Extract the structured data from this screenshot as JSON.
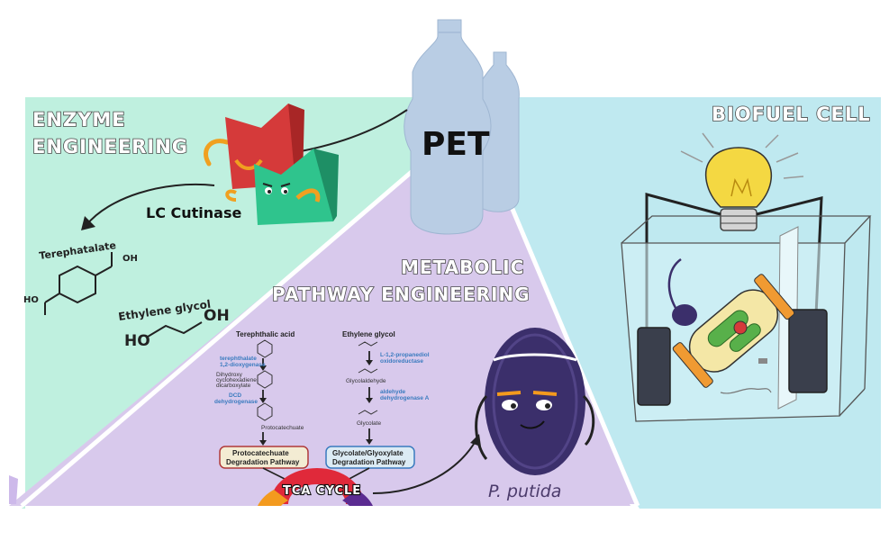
{
  "titles": {
    "enzyme_line1": "ENZYME",
    "enzyme_line2": "ENGINEERING",
    "biofuel": "BIOFUEL CELL",
    "metabolic_line1": "METABOLIC",
    "metabolic_line2": "PATHWAY ENGINEERING"
  },
  "labels": {
    "pet": "PET",
    "lc_cutinase": "LC Cutinase",
    "terephthalate": "Terephatalate",
    "ethylene_glycol": "Ethylene glycol",
    "oh": "OH",
    "ho": "HO",
    "p_putida": "P. putida"
  },
  "pathway": {
    "left_header": "Terephthalic acid",
    "left_enzyme1_line1": "terephthalate",
    "left_enzyme1_line2": "1,2-dioxygenase",
    "left_intermediate_line1": "Dihydroxy",
    "left_intermediate_line2": "cyclohexadiene",
    "left_intermediate_line3": "dicarboxylate",
    "left_enzyme2_line1": "DCD",
    "left_enzyme2_line2": "dehydrogenase",
    "left_product": "Protocatechuate",
    "left_box_line1": "Protocatechuate",
    "left_box_line2": "Degradation Pathway",
    "right_header": "Ethylene glycol",
    "right_enzyme1_line1": "L-1,2-propanediol",
    "right_enzyme1_line2": "oxidoreductase",
    "right_intermediate1": "Glycolaldehyde",
    "right_enzyme2_line1": "aldehyde",
    "right_enzyme2_line2": "dehydrogenase A",
    "right_intermediate2": "Glycolate",
    "right_box_line1": "Glycolate/Glyoxylate",
    "right_box_line2": "Degradation Pathway",
    "tca": "TCA CYCLE"
  },
  "colors": {
    "enzyme_panel": "#bff0df",
    "biofuel_panel": "#bfe9f0",
    "metabolic_panel": "#d8c9ec",
    "bottle": "#b9cde4",
    "enzyme_red": "#d53a3a",
    "enzyme_green": "#2fc48d",
    "bacterium": "#3b2f6b",
    "tca_red": "#e0293a",
    "tca_orange": "#f39a1e",
    "tca_purple": "#5b2b91"
  }
}
